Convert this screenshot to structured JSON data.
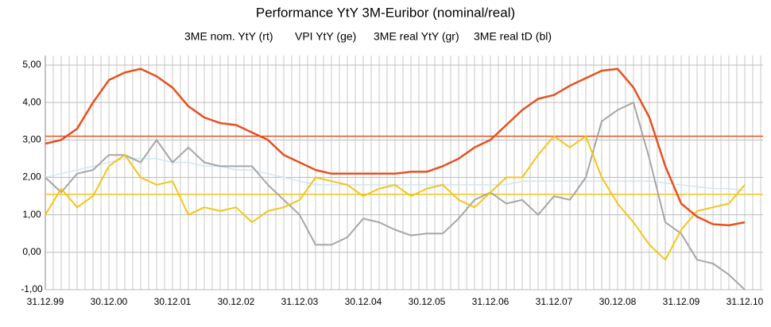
{
  "chart_data": {
    "type": "line",
    "title": "Performance YtY 3M-Euribor (nominal/real)",
    "categories": [
      "31.12.99",
      null,
      null,
      null,
      "30.12.00",
      null,
      null,
      null,
      "30.12.01",
      null,
      null,
      null,
      "30.12.02",
      null,
      null,
      null,
      "31.12.03",
      null,
      null,
      null,
      "30.12.04",
      null,
      null,
      null,
      "30.12.05",
      null,
      null,
      null,
      "31.12.06",
      null,
      null,
      null,
      "31.12.07",
      null,
      null,
      null,
      "30.12.08",
      null,
      null,
      null,
      "31.12.09",
      null,
      null,
      null,
      "31.12.10"
    ],
    "series": [
      {
        "name": "3ME nom. YtY (rt)",
        "color": "#e8501e",
        "width": 2.5,
        "values": [
          2.9,
          3.0,
          3.3,
          4.0,
          4.6,
          4.8,
          4.9,
          4.7,
          4.4,
          3.9,
          3.6,
          3.45,
          3.4,
          3.2,
          3.0,
          2.6,
          2.4,
          2.2,
          2.1,
          2.1,
          2.1,
          2.1,
          2.1,
          2.15,
          2.15,
          2.3,
          2.5,
          2.8,
          3.0,
          3.4,
          3.8,
          4.1,
          4.2,
          4.45,
          4.65,
          4.85,
          4.9,
          4.4,
          3.6,
          2.3,
          1.3,
          0.95,
          0.75,
          0.72,
          0.8
        ]
      },
      {
        "name": "VPI YtY (ge)",
        "color": "#f5c518",
        "width": 2,
        "values": [
          1.0,
          1.7,
          1.2,
          1.5,
          2.3,
          2.6,
          2.0,
          1.8,
          1.9,
          1.0,
          1.2,
          1.1,
          1.2,
          0.8,
          1.1,
          1.2,
          1.4,
          2.0,
          1.9,
          1.8,
          1.5,
          1.7,
          1.8,
          1.5,
          1.7,
          1.8,
          1.4,
          1.2,
          1.6,
          2.0,
          2.0,
          2.6,
          3.1,
          2.8,
          3.1,
          2.0,
          1.3,
          0.8,
          0.2,
          -0.2,
          0.6,
          1.1,
          1.2,
          1.3,
          1.8
        ]
      },
      {
        "name": "3ME real YtY (gr)",
        "color": "#a6a6a6",
        "width": 2,
        "values": [
          2.0,
          1.6,
          2.1,
          2.2,
          2.6,
          2.6,
          2.4,
          3.0,
          2.4,
          2.8,
          2.4,
          2.3,
          2.3,
          2.3,
          1.8,
          1.4,
          1.0,
          0.2,
          0.2,
          0.4,
          0.9,
          0.8,
          0.6,
          0.45,
          0.5,
          0.5,
          0.9,
          1.4,
          1.6,
          1.3,
          1.4,
          1.0,
          1.5,
          1.4,
          2.0,
          3.5,
          3.8,
          4.0,
          2.5,
          0.8,
          0.5,
          -0.2,
          -0.3,
          -0.6,
          -1.0
        ]
      },
      {
        "name": "3ME real tD (bl)",
        "color": "#cfe6f2",
        "width": 1.5,
        "values": [
          2.0,
          2.1,
          2.2,
          2.3,
          2.4,
          2.5,
          2.5,
          2.5,
          2.4,
          2.4,
          2.3,
          2.3,
          2.2,
          2.2,
          2.1,
          2.0,
          1.9,
          1.8,
          1.8,
          1.8,
          1.8,
          1.8,
          1.8,
          1.8,
          1.8,
          1.8,
          1.8,
          1.8,
          1.8,
          1.8,
          1.9,
          1.9,
          1.9,
          1.9,
          1.9,
          1.9,
          1.9,
          1.9,
          1.9,
          1.85,
          1.8,
          1.75,
          1.7,
          1.7,
          1.65
        ]
      }
    ],
    "reference_lines": [
      {
        "value": 3.1,
        "color": "#e8501e"
      },
      {
        "value": 1.55,
        "color": "#f5c518"
      }
    ],
    "ylim": [
      -1,
      5
    ],
    "yticks": [
      {
        "value": -1,
        "label": "-1,00"
      },
      {
        "value": 0,
        "label": "0,00"
      },
      {
        "value": 1,
        "label": "1,00"
      },
      {
        "value": 2,
        "label": "2,00"
      },
      {
        "value": 3,
        "label": "3,00"
      },
      {
        "value": 4,
        "label": "4,00"
      },
      {
        "value": 5,
        "label": "5,00"
      }
    ],
    "grid": true
  }
}
